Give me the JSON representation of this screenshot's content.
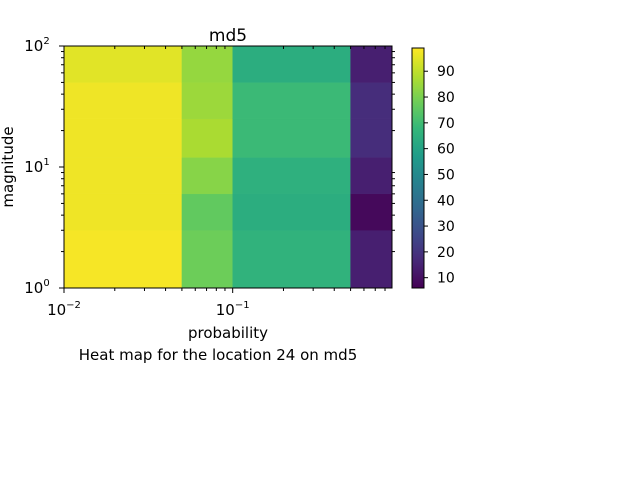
{
  "chart_data": {
    "type": "heatmap",
    "title": "md5",
    "xlabel": "probability",
    "ylabel": "magnitude",
    "caption": "Heat map for the location 24 on md5",
    "x_scale": "log",
    "y_scale": "log",
    "xlim": [
      0.01,
      0.88
    ],
    "ylim": [
      1,
      100
    ],
    "x_ticks": [
      {
        "base": "10",
        "exp": "−2",
        "value": 0.01
      },
      {
        "base": "10",
        "exp": "−1",
        "value": 0.1
      }
    ],
    "y_ticks": [
      {
        "base": "10",
        "exp": "0",
        "value": 1
      },
      {
        "base": "10",
        "exp": "1",
        "value": 10
      },
      {
        "base": "10",
        "exp": "2",
        "value": 100
      }
    ],
    "x_edges": [
      0.01,
      0.05,
      0.1,
      0.5,
      0.88
    ],
    "y_edges": [
      1,
      3,
      6,
      12,
      25,
      50,
      100
    ],
    "cells": [
      [
        98,
        78,
        66,
        14
      ],
      [
        97,
        76,
        64,
        8
      ],
      [
        97,
        82,
        65,
        14
      ],
      [
        97,
        87,
        69,
        18
      ],
      [
        97,
        85,
        69,
        18
      ],
      [
        95,
        84,
        64,
        14
      ]
    ],
    "colorbar": {
      "min": 6,
      "max": 99,
      "ticks": [
        10,
        20,
        30,
        40,
        50,
        60,
        70,
        80,
        90
      ],
      "colormap": "viridis"
    },
    "colors": {
      "viridis": [
        "#440154",
        "#482878",
        "#3e4989",
        "#31688e",
        "#26828e",
        "#1f9e89",
        "#35b779",
        "#6ece58",
        "#b5de2b",
        "#fde725"
      ]
    }
  }
}
